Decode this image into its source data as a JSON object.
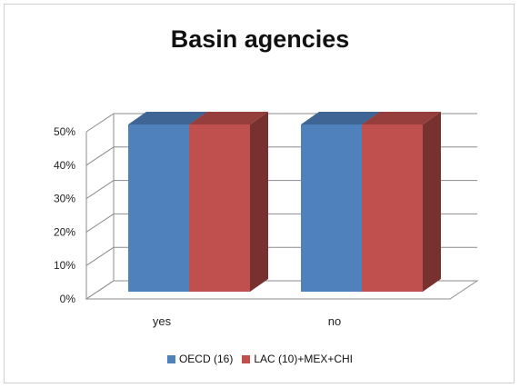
{
  "chart_data": {
    "type": "bar",
    "title": "Basin agencies",
    "categories": [
      "yes",
      "no"
    ],
    "series": [
      {
        "name": "OECD (16)",
        "values": [
          50,
          50
        ],
        "color": "#4f81bd"
      },
      {
        "name": "LAC (10)+MEX+CHI",
        "values": [
          50,
          50
        ],
        "color": "#c0504d"
      }
    ],
    "yticks": [
      "0%",
      "10%",
      "20%",
      "30%",
      "40%",
      "50%"
    ],
    "ylim": [
      0,
      50
    ],
    "grid": true,
    "legend": "bottom",
    "style": "3d-clustered"
  }
}
